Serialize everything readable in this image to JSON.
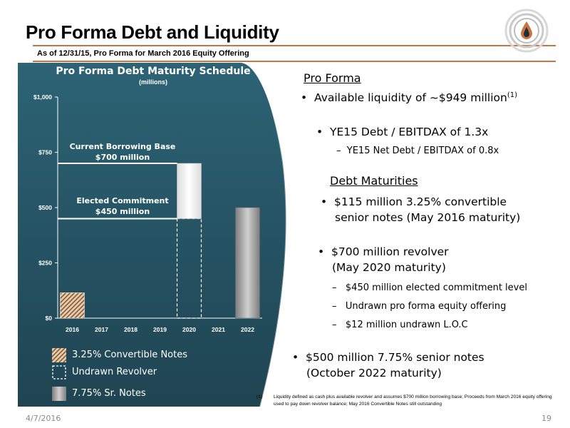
{
  "slide": {
    "title": "Pro Forma Debt and Liquidity",
    "subtitle": "As of 12/31/15, Pro Forma for March 2016 Equity Offering",
    "date": "4/7/2016",
    "page_number": "19"
  },
  "colors": {
    "accent_rule": "#c8753f",
    "panel_dark": "#1f4452",
    "panel_mid": "#2c6375",
    "bar_convertible": "#c19a6b",
    "bar_senior_notes": "#9a9a9a"
  },
  "chart_data": {
    "type": "bar",
    "title": "Pro Forma Debt Maturity Schedule",
    "subtitle": "(millions)",
    "categories": [
      "2016",
      "2017",
      "2018",
      "2019",
      "2020",
      "2021",
      "2022"
    ],
    "y_ticks": [
      "$1,000",
      "$750",
      "$500",
      "$250",
      "$0"
    ],
    "ylim": [
      0,
      1000
    ],
    "series": [
      {
        "name": "3.25% Convertible Notes",
        "values": [
          115,
          0,
          0,
          0,
          0,
          0,
          0
        ]
      },
      {
        "name": "Undrawn Revolver",
        "values": [
          0,
          0,
          0,
          0,
          450,
          0,
          0
        ]
      },
      {
        "name": "7.75% Sr. Notes",
        "values": [
          0,
          0,
          0,
          0,
          0,
          0,
          500
        ]
      }
    ],
    "borrowing_base_segment": {
      "category": "2020",
      "from": 450,
      "to": 700
    },
    "reference_lines": [
      {
        "value": 700,
        "label_line1": "Current Borrowing Base",
        "label_line2": "$700 million"
      },
      {
        "value": 450,
        "label_line1": "Elected Commitment",
        "label_line2": "$450 million"
      }
    ],
    "legend": [
      {
        "label": "3.25% Convertible Notes"
      },
      {
        "label": "Undrawn Revolver"
      },
      {
        "label": "7.75% Sr. Notes"
      }
    ]
  },
  "right": {
    "pro_forma_heading": "Pro Forma",
    "b1_text": "Available liquidity of ~$949 million",
    "b1_sup": "(1)",
    "b2_text": "YE15 Debt / EBITDAX of 1.3x",
    "b2_sub": "YE15 Net Debt / EBITDAX of 0.8x",
    "debt_heading": "Debt Maturities",
    "b3_line1": "$115 million 3.25% convertible",
    "b3_line2": "senior notes (May 2016 maturity)",
    "b4_line1": "$700 million revolver",
    "b4_line2": "(May 2020 maturity)",
    "b4_sub1": "$450 million elected commitment level",
    "b4_sub2": "Undrawn pro forma equity offering",
    "b4_sub3": "$12 million undrawn L.O.C",
    "b5_line1": "$500 million 7.75% senior notes",
    "b5_line2": "(October 2022 maturity)"
  },
  "footnote": {
    "number": "(1)",
    "text": "Liquidity defined as cash plus available revolver and assumes $700 million borrowing base; Proceeds from March 2016 equity offering used to pay down revolver balance; May 2016 Convertible Notes still outstanding"
  }
}
